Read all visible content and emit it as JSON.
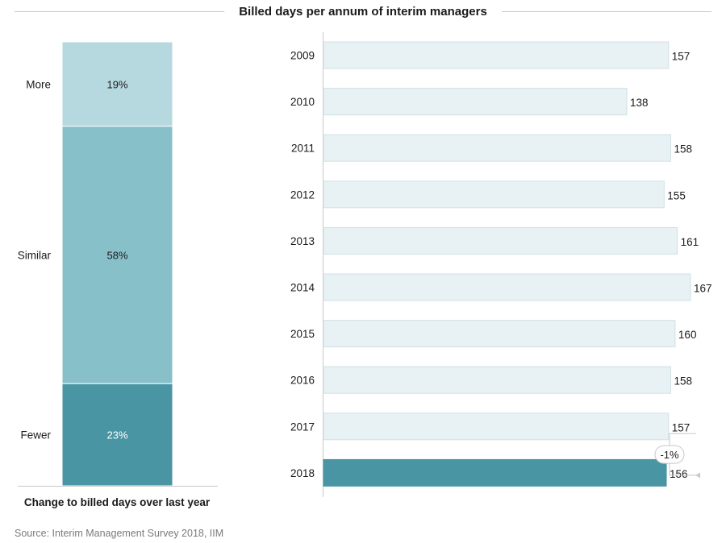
{
  "title": "Billed days per annum of interim managers",
  "source": "Source: Interim Management Survey 2018, IIM",
  "colors": {
    "more": "#b5d9df",
    "similar": "#88c0c9",
    "fewer": "#4a95a4",
    "bar_light": "#e8f1f3",
    "bar_border": "#cfe1e5",
    "bar_highlight": "#4a95a4",
    "axis": "#c8c8c8"
  },
  "chart_data": [
    {
      "type": "bar",
      "stacked": true,
      "xlabel": "Change to billed days over last year",
      "categories": [
        "More",
        "Similar",
        "Fewer"
      ],
      "values": [
        19,
        58,
        23
      ],
      "value_labels": [
        "19%",
        "58%",
        "23%"
      ],
      "unit": "%",
      "ylim": [
        0,
        100
      ]
    },
    {
      "type": "bar",
      "orientation": "horizontal",
      "categories": [
        "2009",
        "2010",
        "2011",
        "2012",
        "2013",
        "2014",
        "2015",
        "2016",
        "2017",
        "2018"
      ],
      "values": [
        157,
        138,
        158,
        155,
        161,
        167,
        160,
        158,
        157,
        156
      ],
      "highlight": "2018",
      "annotation": {
        "from": "2017",
        "to": "2018",
        "label": "-1%"
      }
    }
  ]
}
